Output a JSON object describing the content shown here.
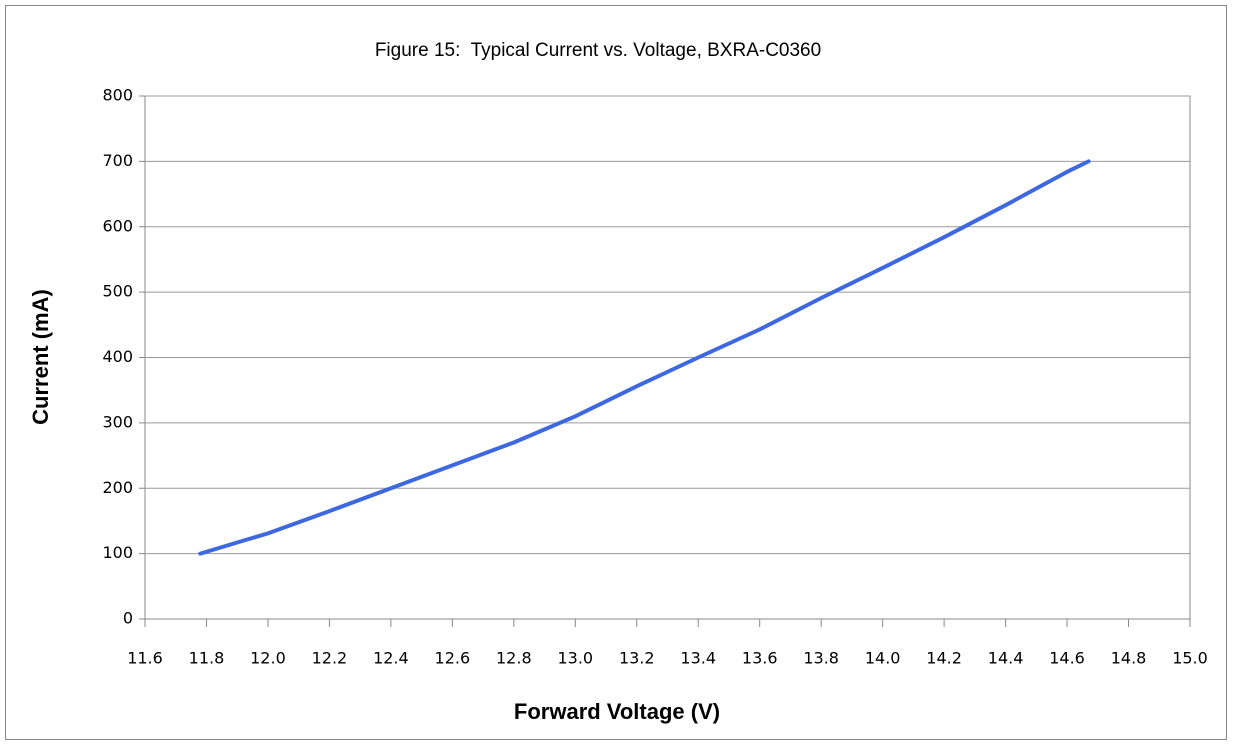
{
  "chart_data": {
    "type": "line",
    "title": "Figure 15:  Typical Current vs. Voltage, BXRA-C0360",
    "x_label": "Forward Voltage (V)",
    "y_label": "Current (mA)",
    "x": [
      11.78,
      11.9,
      12.0,
      12.2,
      12.4,
      12.6,
      12.8,
      13.0,
      13.2,
      13.4,
      13.6,
      13.8,
      14.0,
      14.2,
      14.4,
      14.6,
      14.67
    ],
    "series": [
      {
        "name": "Current",
        "color": "#3e68e0",
        "values": [
          100,
          117,
          131,
          165,
          200,
          235,
          270,
          310,
          356,
          400,
          443,
          491,
          537,
          584,
          633,
          684,
          700
        ]
      }
    ],
    "xlim": [
      11.6,
      15.0
    ],
    "xticks": [
      11.6,
      11.8,
      {
        "value": 12,
        "label": "12.0"
      },
      12.2,
      12.4,
      12.6,
      12.8,
      {
        "value": 13,
        "label": "13.0"
      },
      13.2,
      13.4,
      13.6,
      13.8,
      {
        "value": 14,
        "label": "14.0"
      },
      14.2,
      14.4,
      14.6,
      14.8,
      {
        "value": 15,
        "label": "15.0"
      }
    ],
    "ylim": [
      0,
      800
    ],
    "yticks": [
      0,
      100,
      200,
      300,
      400,
      500,
      600,
      700,
      800
    ],
    "grid": true
  }
}
